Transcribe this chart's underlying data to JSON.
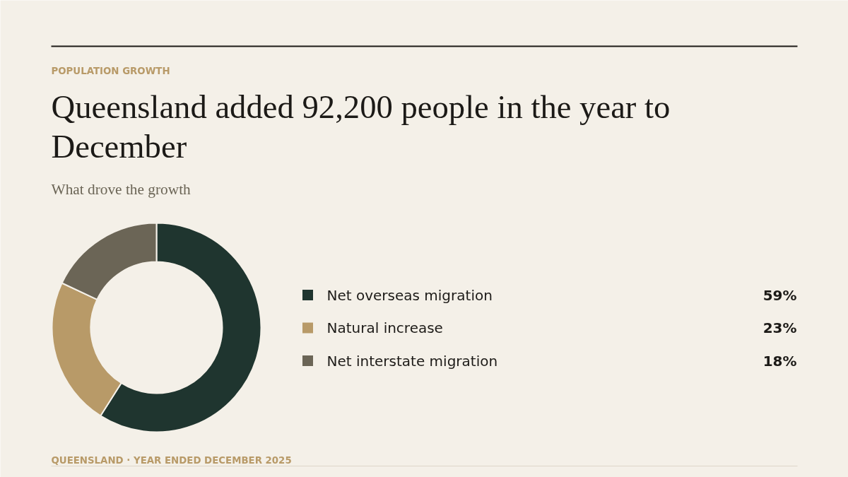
{
  "chart_data": {
    "type": "donut",
    "title": "Queensland added 92,200 people in the year to December",
    "subtitle": "What drove the growth",
    "annotations": [
      "POPULATION GROWTH",
      "QUEENSLAND · YEAR ENDED DECEMBER 2025"
    ],
    "categories": [
      "Net overseas migration",
      "Natural increase",
      "Net interstate migration"
    ],
    "values": [
      59,
      23,
      18
    ],
    "colors": [
      "#1f352f",
      "#b89a68",
      "#6b6556"
    ],
    "value_labels": [
      "59%",
      "23%",
      "18%"
    ],
    "legend": "right"
  }
}
